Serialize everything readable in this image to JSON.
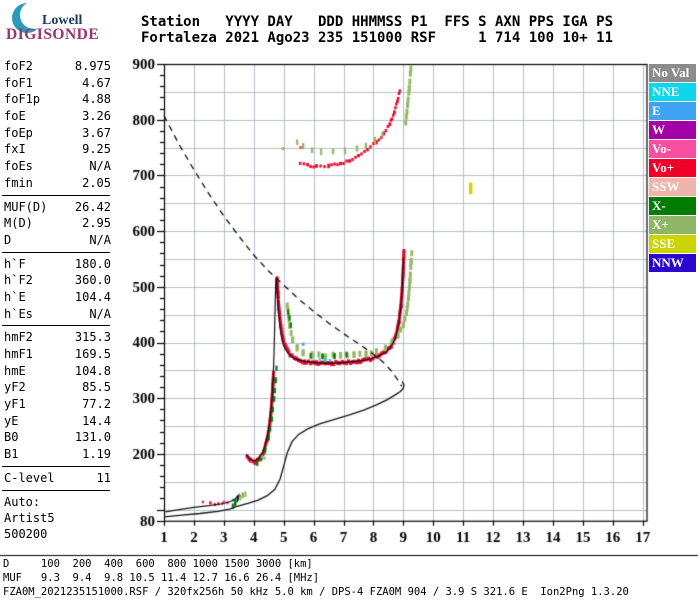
{
  "logo": {
    "top": "Lowell",
    "bottom": "DIGISONDE"
  },
  "header": {
    "line1": "Station   YYYY DAY   DDD HHMMSS P1  FFS S AXN PPS IGA PS",
    "line2": "Fortaleza 2021 Ago23 235 151000 RSF     1 714 100 10+ 11"
  },
  "params": {
    "groups": [
      [
        {
          "label": "foF2",
          "value": "8.975"
        },
        {
          "label": "foF1",
          "value": "4.67"
        },
        {
          "label": "foF1p",
          "value": "4.88"
        },
        {
          "label": "foE",
          "value": "3.26"
        },
        {
          "label": "foEp",
          "value": "3.67"
        },
        {
          "label": "fxI",
          "value": "9.25"
        },
        {
          "label": "foEs",
          "value": "N/A"
        },
        {
          "label": "fmin",
          "value": "2.05"
        }
      ],
      [
        {
          "label": "MUF(D)",
          "value": "26.42"
        },
        {
          "label": "M(D)",
          "value": "2.95"
        },
        {
          "label": "D",
          "value": "N/A"
        }
      ],
      [
        {
          "label": "h`F",
          "value": "180.0"
        },
        {
          "label": "h`F2",
          "value": "360.0"
        },
        {
          "label": "h`E",
          "value": "104.4"
        },
        {
          "label": "h`Es",
          "value": "N/A"
        }
      ],
      [
        {
          "label": "hmF2",
          "value": "315.3"
        },
        {
          "label": "hmF1",
          "value": "169.5"
        },
        {
          "label": "hmE",
          "value": "104.8"
        },
        {
          "label": "yF2",
          "value": "85.5"
        },
        {
          "label": "yF1",
          "value": "77.2"
        },
        {
          "label": "yE",
          "value": "14.4"
        },
        {
          "label": "B0",
          "value": "131.0"
        },
        {
          "label": "B1",
          "value": "1.19"
        }
      ],
      [
        {
          "label": "C-level",
          "value": "11"
        }
      ]
    ],
    "auto_lines": [
      "Auto:",
      "Artist5",
      "500200"
    ]
  },
  "legend": {
    "items": [
      {
        "label": "No Val",
        "color": "#8c8c8c"
      },
      {
        "label": "NNE",
        "color": "#0cd6ea"
      },
      {
        "label": "E",
        "color": "#3ea3f2"
      },
      {
        "label": "W",
        "color": "#a300a8"
      },
      {
        "label": "Vo-",
        "color": "#f64fa0"
      },
      {
        "label": "Vo+",
        "color": "#f00028"
      },
      {
        "label": "SSW",
        "color": "#efb4ab"
      },
      {
        "label": "X-",
        "color": "#007c00"
      },
      {
        "label": "X+",
        "color": "#8fb566"
      },
      {
        "label": "SSE",
        "color": "#ccd400"
      },
      {
        "label": "NNW",
        "color": "#2a06cf"
      }
    ]
  },
  "footer": {
    "d_row": "D     100  200  400  600  800 1000 1500 3000 [km]",
    "muf_row": "MUF   9.3  9.4  9.8 10.5 11.4 12.7 16.6 26.4 [MHz]",
    "file_row": "FZA0M_2021235151000.RSF / 320fx256h 50 kHz 5.0 km / DPS-4 FZA0M 904 / 3.9 S 321.6 E  Ion2Png 1.3.20"
  },
  "chart_data": {
    "type": "scatter",
    "title": "Fortaleza ionogram 2021 Ago23 235 151000",
    "x_unit": "MHz",
    "y_unit": "km",
    "xlim": [
      1,
      17.1
    ],
    "ylim": [
      80,
      900
    ],
    "x_ticks": [
      1,
      2,
      3,
      4,
      5,
      6,
      7,
      8,
      9,
      10,
      11,
      12,
      13,
      14,
      15,
      16,
      17
    ],
    "y_ticks": [
      900,
      800,
      700,
      600,
      500,
      400,
      300,
      200,
      80
    ],
    "grid": {
      "x_step": 1,
      "y_step": 50,
      "on": true
    },
    "legend_position": "right",
    "muf_table": {
      "distances_km": [
        100,
        200,
        400,
        600,
        800,
        1000,
        1500,
        3000
      ],
      "muf_mhz": [
        9.3,
        9.4,
        9.8,
        10.5,
        11.4,
        12.7,
        16.6,
        26.4
      ]
    },
    "colors": {
      "o_mode_red": "#e8082e",
      "pink": "#f0509c",
      "x_dark_green": "#0a7a0a",
      "x_light_green": "#95b966",
      "cyan": "#12d2e8",
      "blue": "#42a0f0",
      "sse_yellow": "#ccd402",
      "grid": "#b9bcc6",
      "black": "#111111"
    },
    "traces": [
      {
        "name": "E-trace-O",
        "color": "#e8082e",
        "style": "dots",
        "points": [
          [
            2.3,
            114
          ],
          [
            2.55,
            112
          ],
          [
            2.7,
            110
          ],
          [
            2.82,
            111
          ],
          [
            2.95,
            112
          ]
        ]
      },
      {
        "name": "E-trace-pink",
        "color": "#f0509c",
        "style": "blocks",
        "points": [
          [
            3.0,
            112
          ],
          [
            3.12,
            114
          ]
        ]
      },
      {
        "name": "E-cyan-dot",
        "color": "#12d2e8",
        "style": "dot1",
        "points": [
          [
            3.33,
            117
          ]
        ]
      },
      {
        "name": "E-trace-X-dark",
        "color": "#0a7a0a",
        "style": "dash",
        "points": [
          [
            3.3,
            105
          ],
          [
            3.38,
            112
          ],
          [
            3.46,
            119
          ]
        ]
      },
      {
        "name": "E-trace-X-light",
        "color": "#95b966",
        "style": "dash",
        "points": [
          [
            3.55,
            121
          ],
          [
            3.63,
            124
          ],
          [
            3.72,
            128
          ]
        ]
      },
      {
        "name": "F1-trace-O",
        "color": "#e8082e",
        "style": "thick",
        "points": [
          [
            3.78,
            197
          ],
          [
            3.9,
            188
          ],
          [
            4.05,
            185
          ],
          [
            4.2,
            191
          ],
          [
            4.33,
            204
          ],
          [
            4.45,
            226
          ],
          [
            4.53,
            252
          ],
          [
            4.59,
            283
          ],
          [
            4.63,
            315
          ],
          [
            4.66,
            345
          ]
        ]
      },
      {
        "name": "F1-pink",
        "color": "#f0509c",
        "style": "blocks",
        "points": [
          [
            3.82,
            192
          ],
          [
            3.92,
            187
          ]
        ]
      },
      {
        "name": "F1-trace-X",
        "color": "#0a7a0a",
        "style": "dash",
        "points": [
          [
            4.12,
            184
          ],
          [
            4.25,
            192
          ],
          [
            4.38,
            207
          ],
          [
            4.5,
            230
          ],
          [
            4.6,
            262
          ],
          [
            4.68,
            298
          ],
          [
            4.73,
            332
          ],
          [
            4.76,
            352
          ]
        ]
      },
      {
        "name": "F1-X-light",
        "color": "#95b966",
        "style": "blocks",
        "points": [
          [
            4.26,
            197
          ],
          [
            4.36,
            193
          ]
        ]
      },
      {
        "name": "F2-trace-O",
        "color": "#e8082e",
        "style": "thick",
        "points": [
          [
            4.78,
            515
          ],
          [
            4.83,
            468
          ],
          [
            4.9,
            432
          ],
          [
            4.98,
            406
          ],
          [
            5.08,
            390
          ],
          [
            5.22,
            378
          ],
          [
            5.42,
            370
          ],
          [
            5.7,
            365
          ],
          [
            6.1,
            363
          ],
          [
            6.6,
            363
          ],
          [
            7.1,
            364
          ],
          [
            7.5,
            366
          ],
          [
            7.9,
            370
          ],
          [
            8.15,
            375
          ],
          [
            8.4,
            383
          ],
          [
            8.6,
            394
          ],
          [
            8.75,
            411
          ],
          [
            8.85,
            436
          ],
          [
            8.92,
            467
          ],
          [
            8.97,
            502
          ],
          [
            9.0,
            535
          ],
          [
            9.02,
            565
          ]
        ]
      },
      {
        "name": "F2-trace-X",
        "color": "#95b966",
        "style": "thickdash",
        "points": [
          [
            5.12,
            468
          ],
          [
            5.2,
            432
          ],
          [
            5.3,
            406
          ],
          [
            5.45,
            390
          ],
          [
            5.65,
            381
          ],
          [
            5.95,
            377
          ],
          [
            6.4,
            376
          ],
          [
            6.9,
            376
          ],
          [
            7.35,
            377
          ],
          [
            7.75,
            380
          ],
          [
            8.1,
            384
          ],
          [
            8.4,
            391
          ],
          [
            8.62,
            400
          ],
          [
            8.82,
            413
          ],
          [
            9.0,
            430
          ],
          [
            9.1,
            452
          ],
          [
            9.17,
            480
          ],
          [
            9.22,
            512
          ],
          [
            9.26,
            545
          ],
          [
            9.28,
            562
          ]
        ]
      },
      {
        "name": "F2-X-dark-bits",
        "color": "#0a7a0a",
        "style": "dash",
        "points": [
          [
            5.15,
            455
          ],
          [
            5.24,
            430
          ]
        ]
      },
      {
        "name": "F2-dark-green-flat",
        "color": "#0a7a0a",
        "style": "dash",
        "points": [
          [
            5.9,
            377
          ],
          [
            6.3,
            376
          ],
          [
            6.7,
            376
          ],
          [
            7.1,
            377
          ]
        ]
      },
      {
        "name": "F2-cyan-dots",
        "color": "#12d2e8",
        "style": "dots",
        "points": [
          [
            6.2,
            369
          ],
          [
            6.4,
            368
          ],
          [
            6.55,
            368
          ]
        ]
      },
      {
        "name": "F2-blue-dot",
        "color": "#42a0f0",
        "style": "dot1",
        "points": [
          [
            5.65,
            397
          ]
        ]
      },
      {
        "name": "second-hop-O",
        "color": "#e8082e",
        "style": "blocks",
        "points": [
          [
            5.55,
            722
          ],
          [
            5.8,
            718
          ],
          [
            6.1,
            716
          ],
          [
            6.5,
            717
          ],
          [
            6.9,
            721
          ],
          [
            7.2,
            727
          ],
          [
            7.5,
            736
          ],
          [
            7.8,
            747
          ],
          [
            8.1,
            760
          ],
          [
            8.35,
            775
          ],
          [
            8.55,
            793
          ],
          [
            8.7,
            813
          ],
          [
            8.8,
            833
          ],
          [
            8.88,
            852
          ]
        ]
      },
      {
        "name": "second-hop-pink",
        "color": "#f0509c",
        "style": "dot1",
        "points": [
          [
            5.57,
            750
          ]
        ]
      },
      {
        "name": "second-hop-X",
        "color": "#95b966",
        "style": "dash",
        "points": [
          [
            5.45,
            760
          ],
          [
            5.65,
            752
          ],
          [
            5.95,
            745
          ],
          [
            6.25,
            742
          ],
          [
            6.65,
            742
          ],
          [
            7.05,
            744
          ],
          [
            7.45,
            749
          ],
          [
            7.75,
            755
          ],
          [
            8.05,
            763
          ],
          [
            8.3,
            772
          ]
        ]
      },
      {
        "name": "second-hop-X-stray",
        "color": "#95b966",
        "style": "dot1",
        "points": [
          [
            4.98,
            748
          ]
        ]
      },
      {
        "name": "second-hop-X-asymptote",
        "color": "#95b966",
        "style": "thickdash",
        "points": [
          [
            9.08,
            795
          ],
          [
            9.14,
            825
          ],
          [
            9.2,
            858
          ],
          [
            9.25,
            892
          ]
        ]
      },
      {
        "name": "stray-sse-mark",
        "color": "#ccd402",
        "style": "thick1",
        "points": [
          [
            11.25,
            670
          ],
          [
            11.25,
            683
          ]
        ]
      }
    ],
    "curves": [
      {
        "name": "muf-transmission-curve",
        "dash": [
          6,
          5
        ],
        "width": 1.3,
        "points": [
          [
            1.0,
            807
          ],
          [
            1.5,
            756
          ],
          [
            2,
            710
          ],
          [
            2.5,
            667
          ],
          [
            3,
            627
          ],
          [
            3.5,
            591
          ],
          [
            4,
            557
          ],
          [
            4.5,
            528
          ],
          [
            5,
            503
          ],
          [
            5.5,
            478
          ],
          [
            6,
            456
          ],
          [
            6.5,
            435
          ],
          [
            7,
            416
          ],
          [
            7.5,
            398
          ],
          [
            8,
            379
          ],
          [
            8.3,
            366
          ],
          [
            8.6,
            349
          ],
          [
            8.8,
            334
          ],
          [
            8.95,
            321
          ]
        ]
      },
      {
        "name": "artist-fit-E",
        "dash": null,
        "width": 1.2,
        "points": [
          [
            1.05,
            96
          ],
          [
            1.5,
            100
          ],
          [
            2.0,
            104
          ],
          [
            2.5,
            107
          ],
          [
            2.9,
            110
          ],
          [
            3.2,
            114
          ],
          [
            3.38,
            119
          ],
          [
            3.5,
            126
          ],
          [
            3.44,
            113
          ]
        ]
      },
      {
        "name": "artist-fit-F",
        "dash": null,
        "width": 1.2,
        "points": [
          [
            3.75,
            199
          ],
          [
            3.85,
            191
          ],
          [
            4.0,
            187
          ],
          [
            4.15,
            191
          ],
          [
            4.3,
            203
          ],
          [
            4.43,
            224
          ],
          [
            4.53,
            255
          ],
          [
            4.6,
            292
          ],
          [
            4.65,
            335
          ],
          [
            4.68,
            385
          ],
          [
            4.7,
            430
          ],
          [
            4.72,
            478
          ],
          [
            4.74,
            515
          ],
          [
            4.77,
            505
          ],
          [
            4.83,
            452
          ],
          [
            4.91,
            414
          ],
          [
            5.0,
            394
          ],
          [
            5.15,
            380
          ],
          [
            5.35,
            371
          ],
          [
            5.7,
            366
          ],
          [
            6.2,
            363
          ],
          [
            6.8,
            363
          ],
          [
            7.4,
            366
          ],
          [
            7.8,
            369
          ],
          [
            8.1,
            374
          ],
          [
            8.4,
            382
          ],
          [
            8.6,
            394
          ],
          [
            8.75,
            410
          ],
          [
            8.85,
            434
          ],
          [
            8.92,
            466
          ],
          [
            8.97,
            508
          ],
          [
            9.0,
            552
          ]
        ]
      },
      {
        "name": "true-height-profile",
        "dash": null,
        "width": 1.3,
        "points": [
          [
            1.0,
            87
          ],
          [
            1.6,
            90
          ],
          [
            2.2,
            93
          ],
          [
            2.8,
            97
          ],
          [
            3.2,
            101
          ],
          [
            3.45,
            106
          ],
          [
            3.8,
            111
          ],
          [
            4.15,
            117
          ],
          [
            4.45,
            125
          ],
          [
            4.7,
            136
          ],
          [
            4.88,
            155
          ],
          [
            5.0,
            178
          ],
          [
            5.12,
            202
          ],
          [
            5.28,
            222
          ],
          [
            5.5,
            235
          ],
          [
            5.8,
            245
          ],
          [
            6.2,
            254
          ],
          [
            6.7,
            262
          ],
          [
            7.2,
            270
          ],
          [
            7.7,
            279
          ],
          [
            8.1,
            288
          ],
          [
            8.45,
            297
          ],
          [
            8.7,
            305
          ],
          [
            8.9,
            312
          ],
          [
            9.0,
            318
          ],
          [
            9.02,
            324
          ],
          [
            8.96,
            330
          ]
        ]
      }
    ]
  }
}
